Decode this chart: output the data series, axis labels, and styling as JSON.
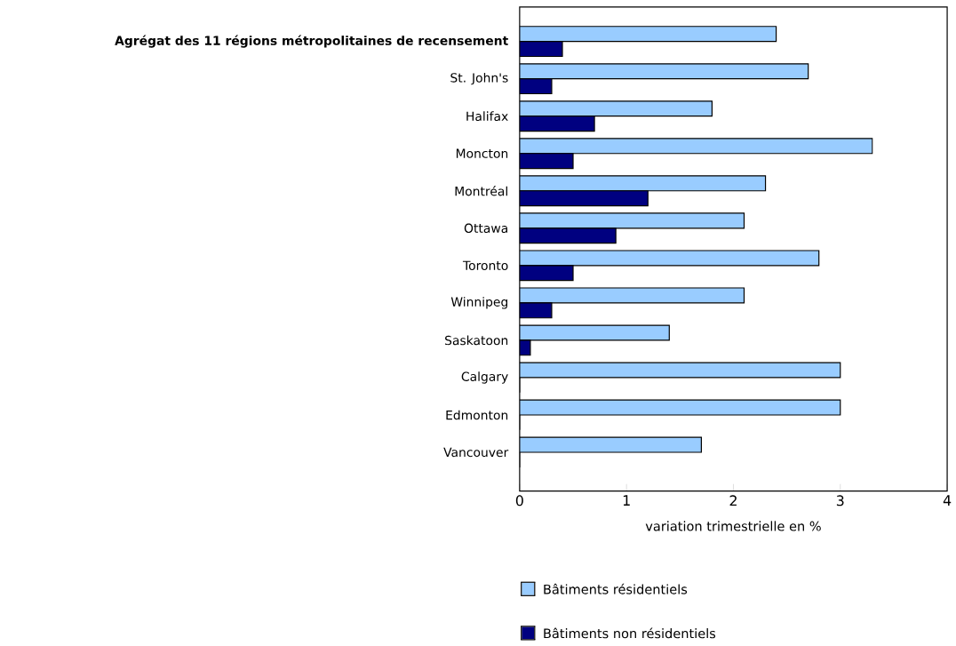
{
  "chart_data": {
    "type": "bar",
    "orientation": "horizontal",
    "xlabel": "variation trimestrielle en %",
    "categories": [
      "Agrégat des 11 régions métropolitaines de recensement",
      "St. John's",
      "Halifax",
      "Moncton",
      "Montréal",
      "Ottawa",
      "Toronto",
      "Winnipeg",
      "Saskatoon",
      "Calgary",
      "Edmonton",
      "Vancouver"
    ],
    "series": [
      {
        "name": "Bâtiments résidentiels",
        "color": "#99ccff",
        "values": [
          2.4,
          2.7,
          1.8,
          3.3,
          2.3,
          2.1,
          2.8,
          2.1,
          1.4,
          3.0,
          3.0,
          1.7
        ]
      },
      {
        "name": "Bâtiments non résidentiels",
        "color": "#000080",
        "values": [
          0.4,
          0.3,
          0.7,
          0.5,
          1.2,
          0.9,
          0.5,
          0.3,
          0.1,
          0.0,
          0.0,
          0.0
        ]
      }
    ],
    "xlim": [
      0,
      4
    ],
    "xticks": [
      0,
      1,
      2,
      3,
      4
    ],
    "grid": false,
    "legend": "bottom"
  }
}
